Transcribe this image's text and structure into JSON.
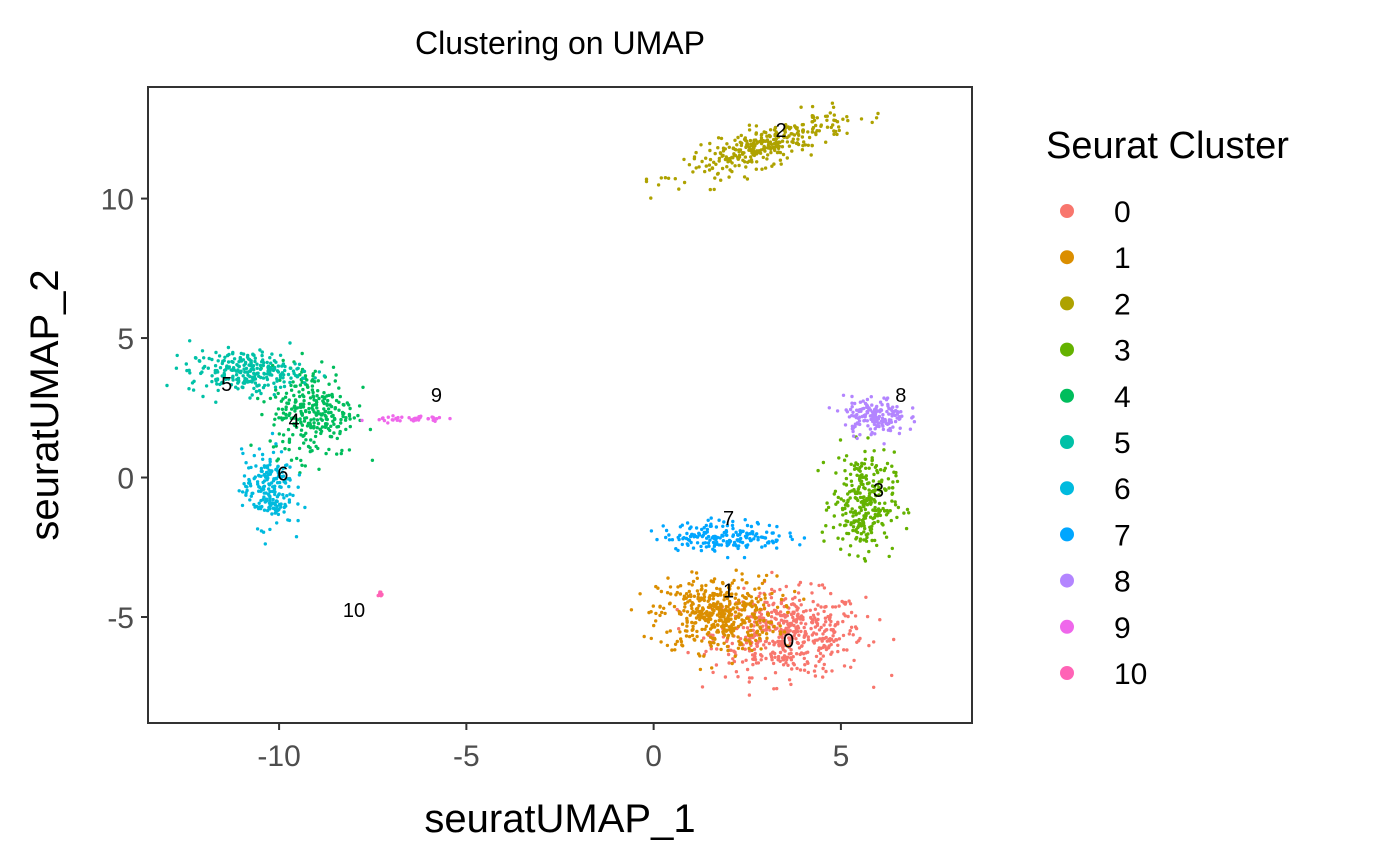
{
  "chart_data": {
    "type": "scatter",
    "title": "Clustering on UMAP",
    "xlabel": "seuratUMAP_1",
    "ylabel": "seuratUMAP_2",
    "xlim": [
      -13.5,
      8.5
    ],
    "ylim": [
      -8.8,
      14.0
    ],
    "xticks": [
      -10,
      -5,
      0,
      5
    ],
    "yticks": [
      -5,
      0,
      5,
      10
    ],
    "grid": false,
    "legend": {
      "title": "Seurat Cluster",
      "position": "right",
      "entries": [
        "0",
        "1",
        "2",
        "3",
        "4",
        "5",
        "6",
        "7",
        "8",
        "9",
        "10"
      ]
    },
    "clusters": [
      {
        "name": "0",
        "color": "#F8766D",
        "center": [
          3.6,
          -5.6
        ],
        "spread": [
          1.35,
          1.0
        ],
        "n": 520,
        "label_pos": [
          3.6,
          -6.1
        ]
      },
      {
        "name": "1",
        "color": "#DB8E00",
        "center": [
          1.7,
          -4.9
        ],
        "spread": [
          1.05,
          0.9
        ],
        "n": 460,
        "label_pos": [
          2.0,
          -4.3
        ]
      },
      {
        "name": "2",
        "color": "#AEA200",
        "center": [
          3.0,
          11.9
        ],
        "spread": [
          1.45,
          0.45
        ],
        "n": 330,
        "label_pos": [
          3.4,
          12.2
        ],
        "tilt": 0.42
      },
      {
        "name": "3",
        "color": "#64B200",
        "center": [
          5.6,
          -0.9
        ],
        "spread": [
          0.55,
          1.2
        ],
        "n": 300,
        "label_pos": [
          6.0,
          -0.7
        ]
      },
      {
        "name": "4",
        "color": "#00BD5C",
        "center": [
          -9.1,
          2.4
        ],
        "spread": [
          0.75,
          1.1
        ],
        "n": 300,
        "label_pos": [
          -9.6,
          1.8
        ]
      },
      {
        "name": "5",
        "color": "#00C1A7",
        "center": [
          -10.9,
          3.8
        ],
        "spread": [
          1.0,
          0.5
        ],
        "n": 260,
        "label_pos": [
          -11.4,
          3.1
        ]
      },
      {
        "name": "6",
        "color": "#00BADE",
        "center": [
          -10.3,
          -0.4
        ],
        "spread": [
          0.45,
          0.9
        ],
        "n": 200,
        "label_pos": [
          -9.9,
          -0.1
        ]
      },
      {
        "name": "7",
        "color": "#00A6FF",
        "center": [
          1.9,
          -2.1
        ],
        "spread": [
          1.1,
          0.35
        ],
        "n": 190,
        "label_pos": [
          2.0,
          -1.7
        ]
      },
      {
        "name": "8",
        "color": "#B385FF",
        "center": [
          5.9,
          2.2
        ],
        "spread": [
          0.55,
          0.45
        ],
        "n": 170,
        "label_pos": [
          6.6,
          2.7
        ]
      },
      {
        "name": "9",
        "color": "#EF67EB",
        "center": [
          -6.5,
          2.1
        ],
        "spread": [
          0.6,
          0.08
        ],
        "n": 40,
        "label_pos": [
          -5.8,
          2.7
        ]
      },
      {
        "name": "10",
        "color": "#FF63B6",
        "center": [
          -7.3,
          -4.2
        ],
        "spread": [
          0.05,
          0.1
        ],
        "n": 10,
        "label_pos": [
          -8.0,
          -5.0
        ]
      }
    ]
  }
}
